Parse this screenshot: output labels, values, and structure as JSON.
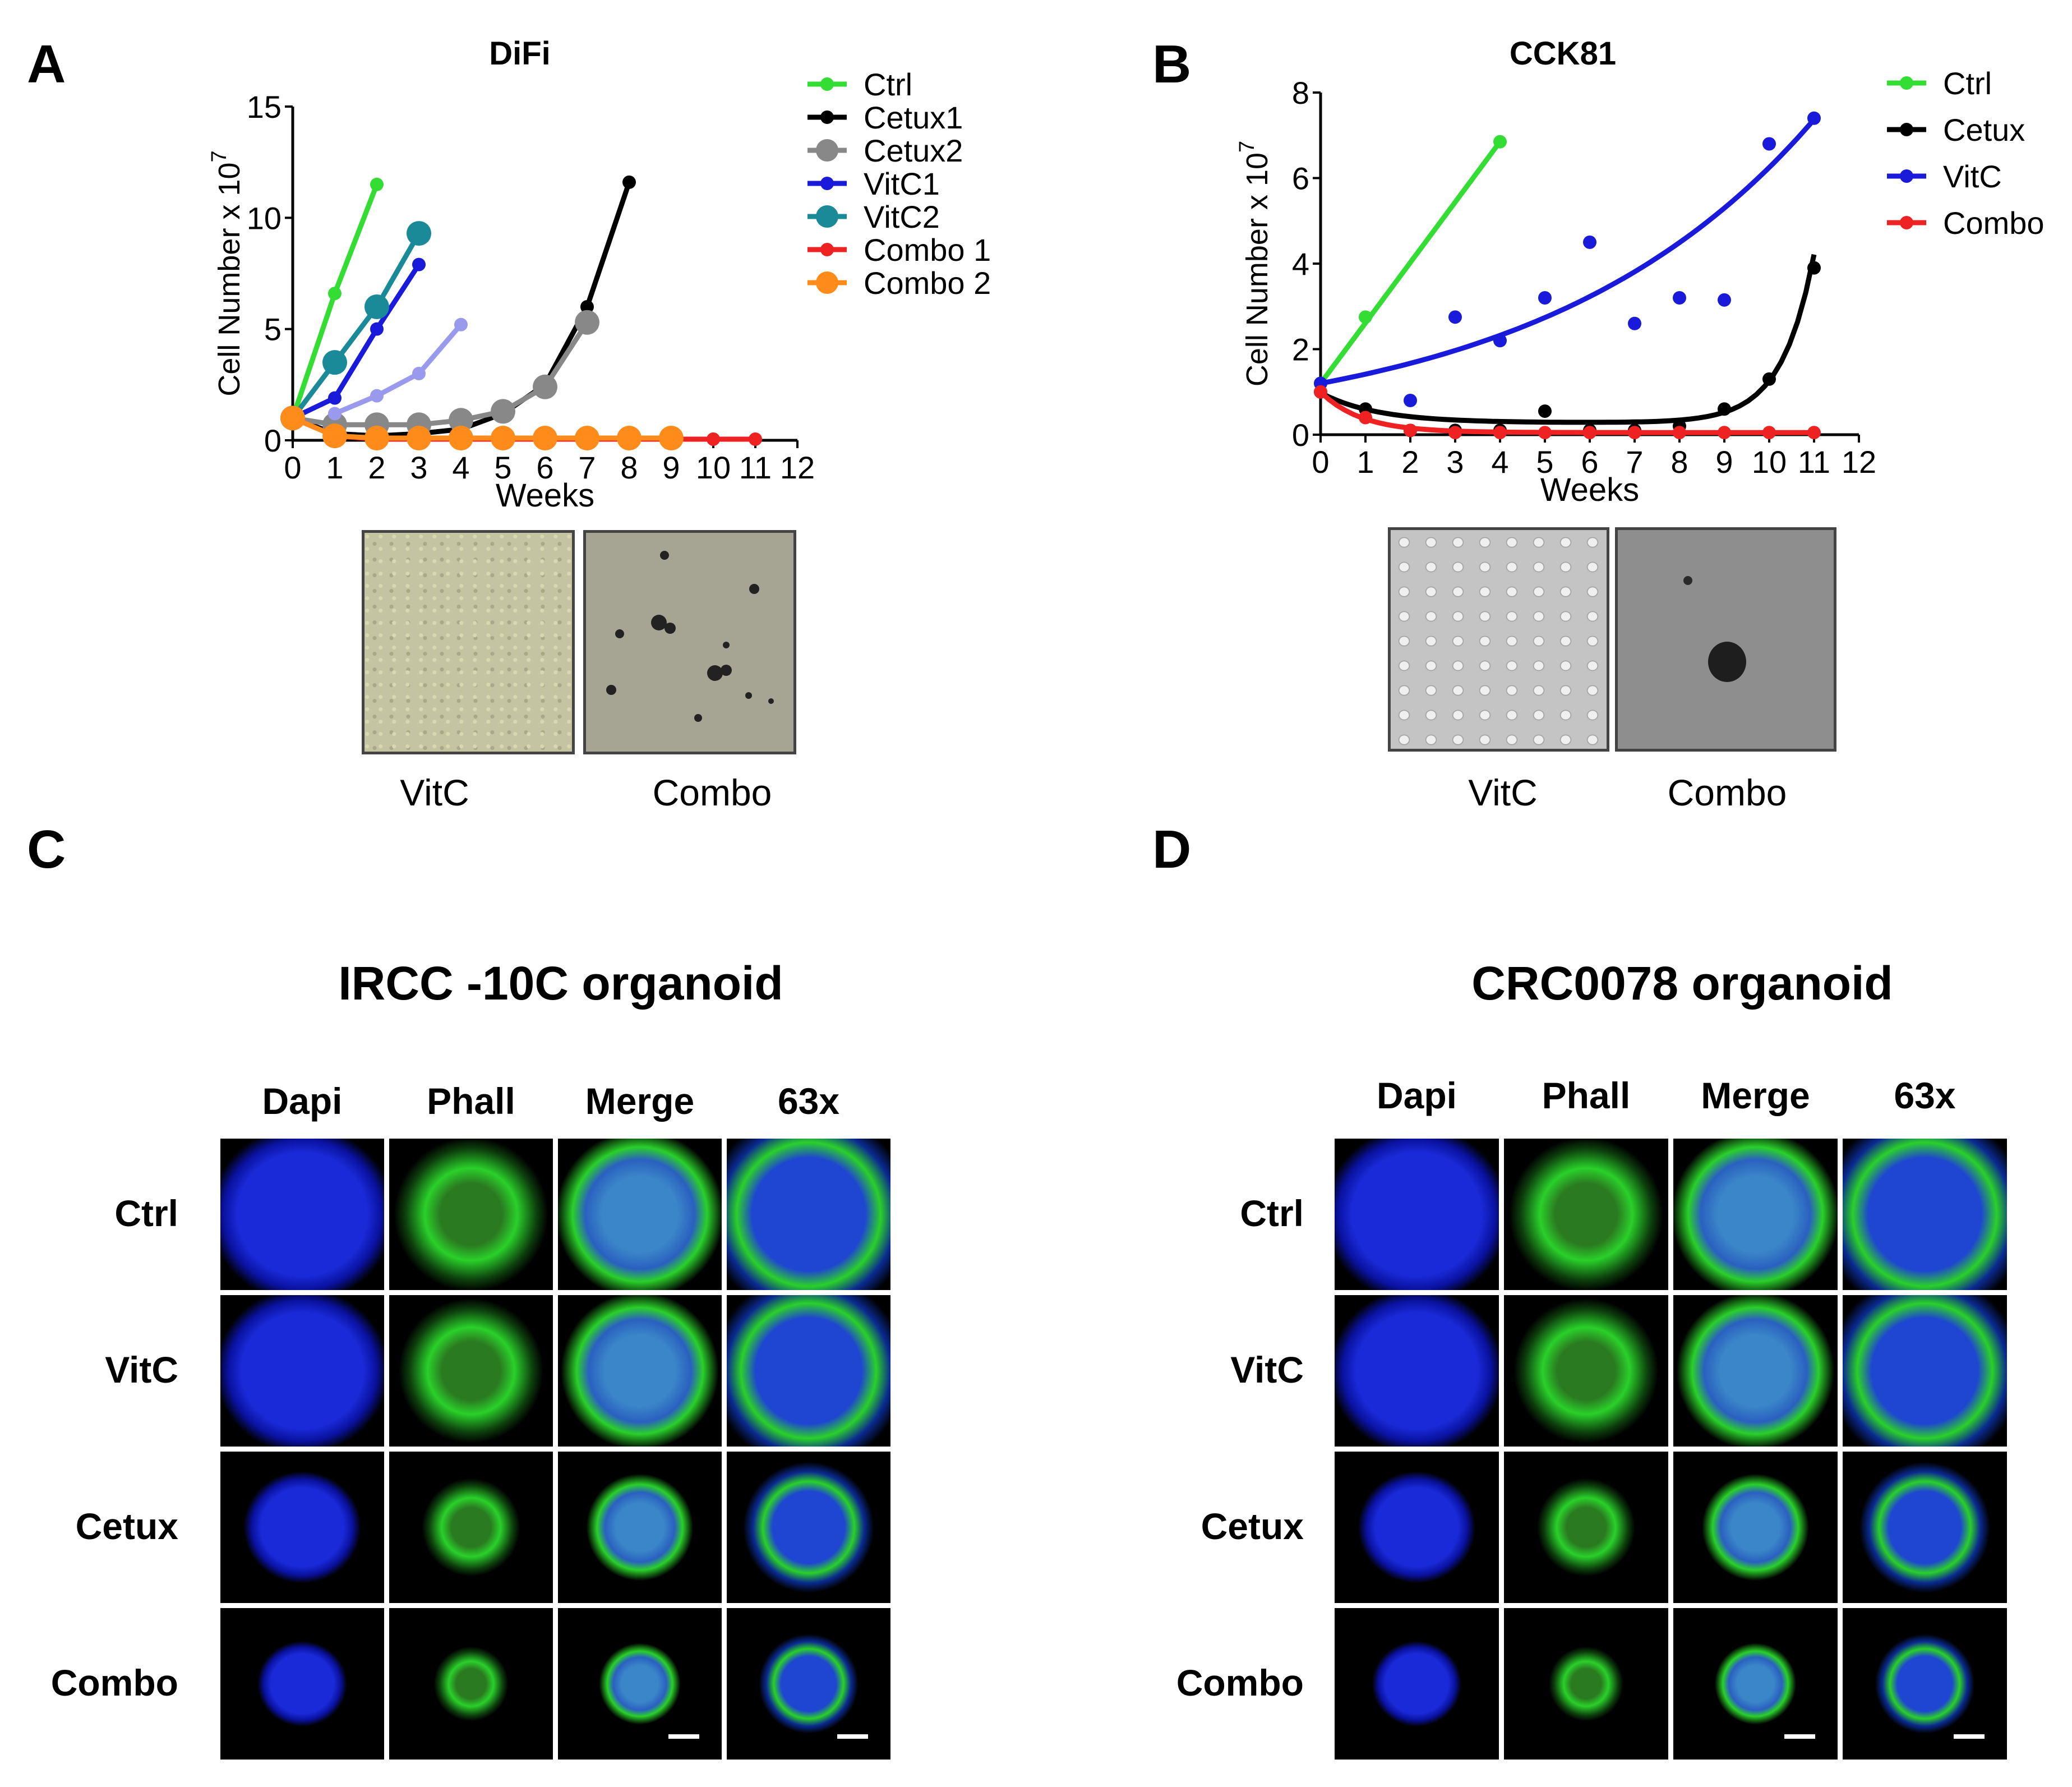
{
  "panels": {
    "A": {
      "letter": "A",
      "chart_data": {
        "type": "line",
        "title": "DiFi",
        "xlabel": "Weeks",
        "ylabel": "Cell Number x 10",
        "ylabel_sup": "7",
        "xlim": [
          0,
          12
        ],
        "ylim": [
          0,
          15
        ],
        "xticks": [
          "0",
          "1",
          "2",
          "3",
          "4",
          "5",
          "6",
          "7",
          "8",
          "9",
          "10",
          "11",
          "12"
        ],
        "yticks": [
          "0",
          "5",
          "10",
          "15"
        ],
        "legend": "top-right",
        "series": [
          {
            "name": "Ctrl",
            "color": "#33dd33",
            "marker": "small",
            "x": [
              0,
              1,
              2
            ],
            "y": [
              1,
              6.6,
              11.5
            ]
          },
          {
            "name": "Cetux1",
            "color": "#000000",
            "marker": "small",
            "x": [
              0,
              1,
              2,
              3,
              4,
              5,
              6,
              7,
              8
            ],
            "y": [
              1,
              0.3,
              0.2,
              0.3,
              0.5,
              1.2,
              2.5,
              6,
              11.6
            ]
          },
          {
            "name": "Cetux2",
            "color": "#888888",
            "marker": "large",
            "x": [
              0,
              1,
              2,
              3,
              4,
              5,
              6,
              7
            ],
            "y": [
              1,
              0.7,
              0.7,
              0.7,
              0.9,
              1.3,
              2.4,
              5.3
            ]
          },
          {
            "name": "VitC1",
            "color": "#1a1adb",
            "marker": "small",
            "x": [
              0,
              1,
              2,
              3
            ],
            "y": [
              1,
              1.9,
              5,
              7.9
            ]
          },
          {
            "name": "VitC2",
            "color": "#1a8a99",
            "marker": "large",
            "x": [
              0,
              1,
              2,
              3
            ],
            "y": [
              1,
              3.5,
              6,
              9.3
            ]
          },
          {
            "name": "Combo 1",
            "color": "#ee2222",
            "marker": "small",
            "x": [
              0,
              1,
              2,
              3,
              4,
              5,
              6,
              7,
              8,
              9,
              10,
              11
            ],
            "y": [
              1,
              0.2,
              0.05,
              0.05,
              0.05,
              0.05,
              0.05,
              0.05,
              0.05,
              0.05,
              0.05,
              0.05
            ]
          },
          {
            "name": "Combo 2",
            "color": "#ff8c1a",
            "marker": "large",
            "x": [
              0,
              1,
              2,
              3,
              4,
              5,
              6,
              7,
              8,
              9
            ],
            "y": [
              1,
              0.2,
              0.1,
              0.1,
              0.1,
              0.1,
              0.1,
              0.1,
              0.1,
              0.1
            ]
          },
          {
            "name": "",
            "color": "#9999ee",
            "marker": "small",
            "x": [
              1,
              2,
              3,
              4
            ],
            "y": [
              1.2,
              2,
              3,
              5.2
            ]
          }
        ]
      },
      "photos": {
        "left": "VitC",
        "right": "Combo"
      }
    },
    "B": {
      "letter": "B",
      "chart_data": {
        "type": "scatter",
        "title": "CCK81",
        "xlabel": "Weeks",
        "ylabel": "Cell Number x 10",
        "ylabel_sup": "7",
        "xlim": [
          0,
          12
        ],
        "ylim": [
          0,
          8
        ],
        "xticks": [
          "0",
          "1",
          "2",
          "3",
          "4",
          "5",
          "6",
          "7",
          "8",
          "9",
          "10",
          "11",
          "12"
        ],
        "yticks": [
          "0",
          "2",
          "4",
          "6",
          "8"
        ],
        "legend": "top-right",
        "series": [
          {
            "name": "Ctrl",
            "color": "#33dd33",
            "x": [
              0,
              1,
              4
            ],
            "y": [
              1.2,
              2.75,
              6.85
            ]
          },
          {
            "name": "Cetux",
            "color": "#000000",
            "x": [
              0,
              1,
              2,
              3,
              4,
              5,
              6,
              7,
              8,
              9,
              10,
              11
            ],
            "y": [
              1,
              0.6,
              0.1,
              0.1,
              0.1,
              0.55,
              0.1,
              0.1,
              0.2,
              0.6,
              1.3,
              3.9
            ]
          },
          {
            "name": "VitC",
            "color": "#1a1adb",
            "x": [
              0,
              2,
              3,
              4,
              5,
              6,
              7,
              8,
              9,
              10,
              11
            ],
            "y": [
              1.2,
              0.8,
              2.75,
              2.2,
              3.2,
              4.5,
              2.6,
              3.2,
              3.15,
              6.8,
              7.4
            ]
          },
          {
            "name": "Combo",
            "color": "#ee2222",
            "x": [
              0,
              1,
              2,
              3,
              4,
              5,
              6,
              7,
              8,
              9,
              10,
              11
            ],
            "y": [
              1,
              0.4,
              0.1,
              0.05,
              0.05,
              0.05,
              0.05,
              0.05,
              0.05,
              0.05,
              0.05,
              0.05
            ]
          }
        ]
      },
      "photos": {
        "left": "VitC",
        "right": "Combo"
      }
    },
    "C": {
      "letter": "C",
      "title": "IRCC -10C  organoid",
      "columns": [
        "Dapi",
        "Phall",
        "Merge",
        "63x"
      ],
      "rows": [
        "Ctrl",
        "VitC",
        "Cetux",
        "Combo"
      ]
    },
    "D": {
      "letter": "D",
      "title": "CRC0078   organoid",
      "columns": [
        "Dapi",
        "Phall",
        "Merge",
        "63x"
      ],
      "rows": [
        "Ctrl",
        "VitC",
        "Cetux",
        "Combo"
      ]
    }
  }
}
